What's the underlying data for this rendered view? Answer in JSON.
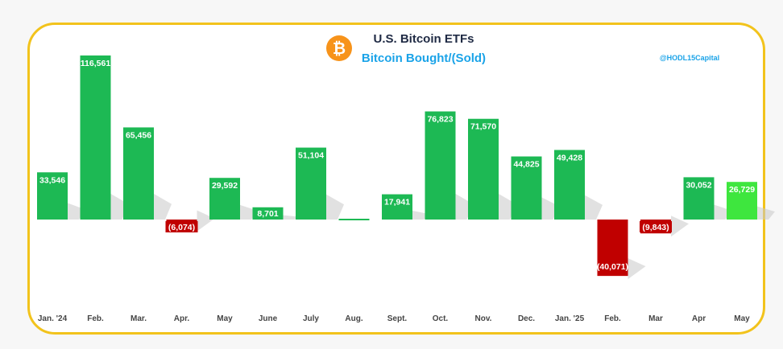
{
  "header": {
    "title": "U.S. Bitcoin ETFs",
    "subtitle": "Bitcoin Bought/(Sold)",
    "handle": "@HODL15Capital",
    "logo_icon": "bitcoin-icon"
  },
  "colors": {
    "positive": "#1db954",
    "positive_highlight": "#3ee63e",
    "negative": "#c00000",
    "frame": "#f2c31c",
    "logo": "#f7931a"
  },
  "chart_data": {
    "type": "bar",
    "title": "U.S. Bitcoin ETFs",
    "subtitle": "Bitcoin Bought/(Sold)",
    "categories": [
      "Jan. '24",
      "Feb.",
      "Mar.",
      "Apr.",
      "May",
      "June",
      "July",
      "Aug.",
      "Sept.",
      "Oct.",
      "Nov.",
      "Dec.",
      "Jan. '25",
      "Feb.",
      "Mar",
      "Apr",
      "May"
    ],
    "values": [
      33546,
      116561,
      65456,
      -6074,
      29592,
      8701,
      51104,
      0,
      17941,
      76823,
      71570,
      44825,
      49428,
      -40071,
      -9843,
      30052,
      26729
    ],
    "labels": [
      "33,546",
      "116,561",
      "65,456",
      "(6,074)",
      "29,592",
      "8,701",
      "51,104",
      "",
      "17,941",
      "76,823",
      "71,570",
      "44,825",
      "49,428",
      "(40,071)",
      "(9,843)",
      "30,052",
      "26,729"
    ],
    "highlight_index": 16,
    "xlabel": "",
    "ylabel": "",
    "grid": false,
    "legend": "none"
  }
}
